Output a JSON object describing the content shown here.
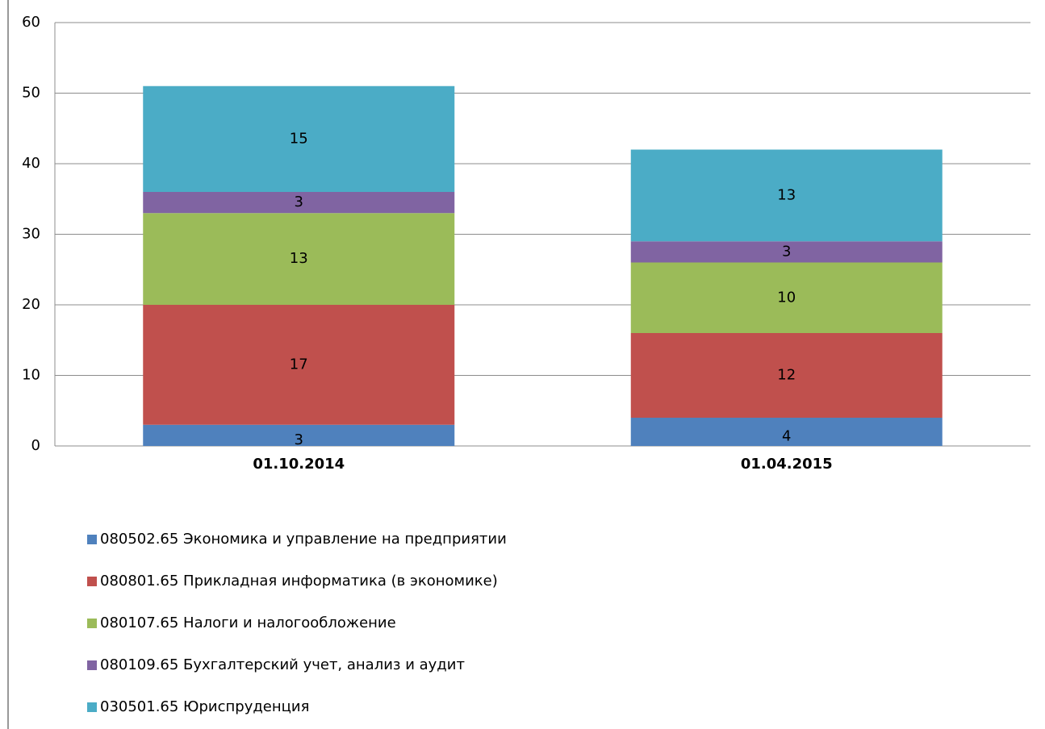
{
  "chart_data": {
    "type": "stacked_bar",
    "categories": [
      "01.10.2014",
      "01.04.2015"
    ],
    "series": [
      {
        "name": "080502.65 Экономика и управление на предприятии",
        "color": "#4f81bd",
        "values": [
          3,
          4
        ]
      },
      {
        "name": "080801.65 Прикладная информатика (в экономике)",
        "color": "#c0504d",
        "values": [
          17,
          12
        ]
      },
      {
        "name": "080107.65 Налоги и налогообложение",
        "color": "#9bbb59",
        "values": [
          13,
          10
        ]
      },
      {
        "name": "080109.65 Бухгалтерский учет, анализ и аудит",
        "color": "#8064a2",
        "values": [
          3,
          3
        ]
      },
      {
        "name": "030501.65 Юриспруденция",
        "color": "#4bacc6",
        "values": [
          15,
          13
        ]
      }
    ],
    "ylim": [
      0,
      60
    ],
    "yticks": [
      0,
      10,
      20,
      30,
      40,
      50,
      60
    ],
    "grid": true,
    "legend": "bottom"
  }
}
